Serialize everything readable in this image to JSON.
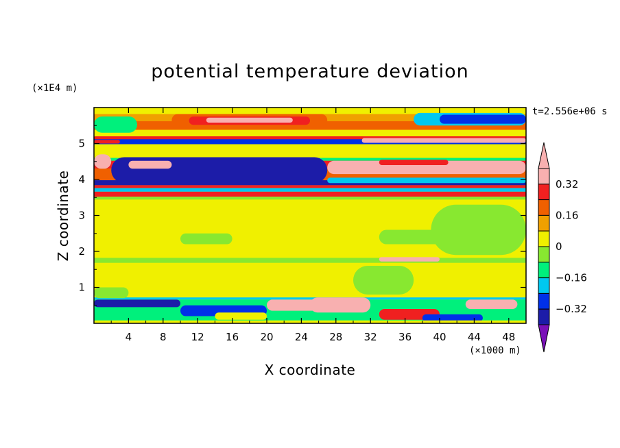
{
  "chart_data": {
    "type": "heatmap",
    "title": "potential temperature deviation",
    "xlabel": "X coordinate",
    "ylabel": "Z coordinate",
    "x_unit_label": "(×1000 m)",
    "y_unit_label": "(×1E4 m)",
    "time_label": "t=2.556e+06 s",
    "xlim": [
      0,
      50
    ],
    "ylim": [
      0,
      6
    ],
    "x_ticks": [
      "4",
      "8",
      "12",
      "16",
      "20",
      "24",
      "28",
      "32",
      "36",
      "40",
      "44",
      "48"
    ],
    "y_ticks": [
      "1",
      "2",
      "3",
      "4",
      "5"
    ],
    "colorbar": {
      "levels": [
        -0.4,
        -0.32,
        -0.24,
        -0.16,
        -0.08,
        0,
        0.08,
        0.16,
        0.24,
        0.32,
        0.4
      ],
      "colors": [
        "#7a10b8",
        "#1c1ca8",
        "#0030e8",
        "#00c8f0",
        "#00f07c",
        "#88e830",
        "#f0f000",
        "#f0a000",
        "#f06000",
        "#f02020",
        "#f8b0b0",
        "#f8b0b0"
      ],
      "labels": [
        "0.32",
        "0.16",
        "0",
        "−0.16",
        "−0.32"
      ],
      "extend": "both"
    },
    "bands": [
      {
        "z0": 5.82,
        "z1": 6.0,
        "v": 0.02
      },
      {
        "z0": 5.62,
        "z1": 5.82,
        "v": 0.12
      },
      {
        "z0": 5.38,
        "z1": 5.62,
        "v": 0.22
      },
      {
        "z0": 5.18,
        "z1": 5.38,
        "v": 0.06
      },
      {
        "z0": 4.98,
        "z1": 5.18,
        "v": -0.3
      },
      {
        "z0": 4.6,
        "z1": 4.98,
        "v": 0.04
      },
      {
        "z0": 4.52,
        "z1": 4.6,
        "v": -0.12
      },
      {
        "z0": 4.3,
        "z1": 4.52,
        "v": 0.3
      },
      {
        "z0": 3.98,
        "z1": 4.3,
        "v": 0.2
      },
      {
        "z0": 3.84,
        "z1": 3.98,
        "v": -0.34
      },
      {
        "z0": 3.76,
        "z1": 3.84,
        "v": 0.28
      },
      {
        "z0": 3.66,
        "z1": 3.76,
        "v": -0.22
      },
      {
        "z0": 3.52,
        "z1": 3.66,
        "v": 0.26
      },
      {
        "z0": 3.44,
        "z1": 3.52,
        "v": -0.05
      },
      {
        "z0": 1.82,
        "z1": 3.44,
        "v": 0.05
      },
      {
        "z0": 1.68,
        "z1": 1.82,
        "v": -0.04
      },
      {
        "z0": 0.72,
        "z1": 1.68,
        "v": 0.05
      },
      {
        "z0": 0.66,
        "z1": 0.72,
        "v": -0.2
      },
      {
        "z0": 0.0,
        "z1": 0.66,
        "v": -0.1
      }
    ],
    "features": [
      {
        "x0": 0,
        "x1": 5,
        "z0": 5.3,
        "z1": 5.75,
        "v": -0.12
      },
      {
        "x0": 9,
        "x1": 27,
        "z0": 5.48,
        "z1": 5.82,
        "v": 0.18
      },
      {
        "x0": 11,
        "x1": 25,
        "z0": 5.52,
        "z1": 5.75,
        "v": 0.3
      },
      {
        "x0": 13,
        "x1": 23,
        "z0": 5.58,
        "z1": 5.72,
        "v": 0.4
      },
      {
        "x0": 37,
        "x1": 50,
        "z0": 5.5,
        "z1": 5.85,
        "v": -0.2
      },
      {
        "x0": 40,
        "x1": 50,
        "z0": 5.55,
        "z1": 5.8,
        "v": -0.3
      },
      {
        "x0": 0,
        "x1": 2,
        "z0": 4.3,
        "z1": 4.7,
        "v": 0.4
      },
      {
        "x0": 2,
        "x1": 27,
        "z0": 3.9,
        "z1": 4.62,
        "v": -0.38
      },
      {
        "x0": 4,
        "x1": 9,
        "z0": 4.3,
        "z1": 4.52,
        "v": 0.4
      },
      {
        "x0": 27,
        "x1": 50,
        "z0": 4.15,
        "z1": 4.52,
        "v": 0.4
      },
      {
        "x0": 33,
        "x1": 41,
        "z0": 4.4,
        "z1": 4.55,
        "v": 0.28
      },
      {
        "x0": 27,
        "x1": 50,
        "z0": 3.9,
        "z1": 4.05,
        "v": -0.2
      },
      {
        "x0": 0,
        "x1": 50,
        "z0": 5.12,
        "z1": 5.2,
        "v": 0.3
      },
      {
        "x0": 31,
        "x1": 50,
        "z0": 5.02,
        "z1": 5.15,
        "v": 0.4
      },
      {
        "x0": 0,
        "x1": 3,
        "z0": 5.0,
        "z1": 5.1,
        "v": 0.25
      },
      {
        "x0": 0,
        "x1": 9,
        "z0": 2.0,
        "z1": 3.3,
        "v": 0.07
      },
      {
        "x0": 10,
        "x1": 16,
        "z0": 2.2,
        "z1": 2.5,
        "v": -0.02
      },
      {
        "x0": 20,
        "x1": 26,
        "z0": 2.4,
        "z1": 2.7,
        "v": 0.01
      },
      {
        "x0": 33,
        "x1": 43,
        "z0": 2.2,
        "z1": 2.6,
        "v": -0.03
      },
      {
        "x0": 39,
        "x1": 50,
        "z0": 1.9,
        "z1": 3.3,
        "v": -0.02
      },
      {
        "x0": 0,
        "x1": 4,
        "z0": 0.7,
        "z1": 1.0,
        "v": -0.02
      },
      {
        "x0": 30,
        "x1": 37,
        "z0": 0.8,
        "z1": 1.6,
        "v": -0.02
      },
      {
        "x0": 33,
        "x1": 40,
        "z0": 1.72,
        "z1": 1.84,
        "v": 0.38
      },
      {
        "x0": 20,
        "x1": 27,
        "z0": 0.35,
        "z1": 0.66,
        "v": 0.32
      },
      {
        "x0": 25,
        "x1": 32,
        "z0": 0.3,
        "z1": 0.72,
        "v": 0.4
      },
      {
        "x0": 33,
        "x1": 40,
        "z0": 0.1,
        "z1": 0.4,
        "v": 0.3
      },
      {
        "x0": 43,
        "x1": 49,
        "z0": 0.4,
        "z1": 0.66,
        "v": 0.4
      },
      {
        "x0": 0,
        "x1": 10,
        "z0": 0.45,
        "z1": 0.66,
        "v": -0.34
      },
      {
        "x0": 10,
        "x1": 20,
        "z0": 0.2,
        "z1": 0.5,
        "v": -0.26
      },
      {
        "x0": 38,
        "x1": 45,
        "z0": 0.05,
        "z1": 0.25,
        "v": -0.3
      },
      {
        "x0": 0,
        "x1": 50,
        "z0": 0.0,
        "z1": 0.08,
        "v": 0.0
      },
      {
        "x0": 14,
        "x1": 20,
        "z0": 0.1,
        "z1": 0.3,
        "v": 0.05
      }
    ]
  }
}
